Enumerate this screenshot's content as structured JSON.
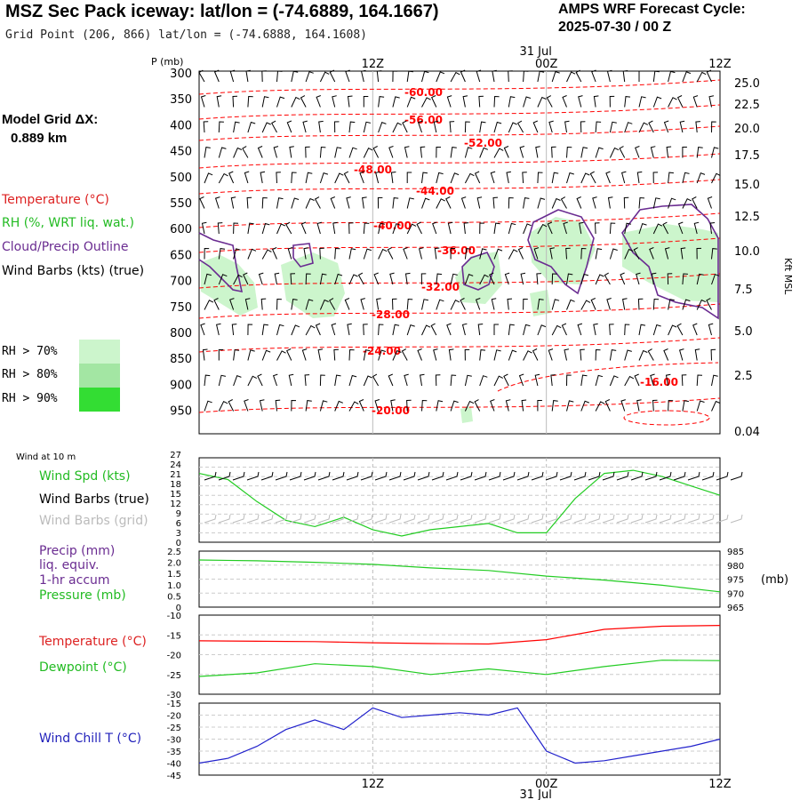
{
  "header": {
    "title": "MSZ Sec Pack iceway:  lat/lon = (-74.6889, 164.1667)",
    "subtitle": "Grid Point (206, 866) lat/lon = (-74.6888, 164.1608)",
    "cycle_label": "AMPS WRF Forecast Cycle:",
    "cycle_value": "2025-07-30 / 00  Z"
  },
  "model_grid": {
    "label": "Model Grid ΔX:",
    "value": "0.889 km"
  },
  "legend": {
    "temperature": "Temperature (°C)",
    "rh": "RH (%, WRT liq. wat.)",
    "cloud": "Cloud/Precip Outline",
    "wind": "Wind Barbs (kts) (true)",
    "rh70": "RH > 70%",
    "rh80": "RH > 80%",
    "rh90": "RH > 90%"
  },
  "colors": {
    "temperature": "#ff0000",
    "rh70": "#ccf5cc",
    "rh80": "#a3e6a3",
    "rh90": "#33dd33",
    "cloud": "#6a2c91",
    "wind_spd": "#22cc22",
    "pressure": "#22cc22",
    "dewpoint": "#22cc22",
    "windchill": "#2222cc",
    "grid_barbs": "#bbbbbb"
  },
  "panels": {
    "wind10_title": "Wind at 10 m",
    "wind_spd": "Wind Spd (kts)",
    "wind_barbs_true": "Wind Barbs (true)",
    "wind_barbs_grid": "Wind Barbs (grid)",
    "precip": "Precip (mm)",
    "precip_sub1": "liq. equiv.",
    "precip_sub2": "1-hr accum",
    "pressure": "Pressure (mb)",
    "pressure_unit": "(mb)",
    "temperature": "Temperature (°C)",
    "dewpoint": "Dewpoint (°C)",
    "windchill": "Wind Chill T (°C)"
  },
  "time_axis": {
    "top_labels": [
      "12Z",
      "00Z",
      "12Z"
    ],
    "date_label": "31 Jul"
  },
  "chart_data": [
    {
      "type": "line",
      "name": "upper-air cross section",
      "yaxis_left_label": "P (mb)",
      "pressure_ticks": [
        "300",
        "350",
        "400",
        "450",
        "500",
        "550",
        "600",
        "650",
        "700",
        "750",
        "800",
        "850",
        "900",
        "950"
      ],
      "height_ticks": [
        "25.0",
        "22.5",
        "20.0",
        "17.5",
        "15.0",
        "12.5",
        "10.0",
        "7.5",
        "5.0",
        "2.5",
        "0.04"
      ],
      "height_axis_label": "Kft MSL",
      "isotherm_labels": [
        "-60.00",
        "-56.00",
        "-52.00",
        "-48.00",
        "-44.00",
        "-40.00",
        "-36.00",
        "-32.00",
        "-28.00",
        "-24.00",
        "-20.00",
        "-16.00"
      ]
    },
    {
      "type": "line",
      "name": "10 m wind speed",
      "ylim": [
        0,
        27
      ],
      "yticks": [
        "27",
        "24",
        "21",
        "18",
        "15",
        "12",
        "9",
        "6",
        "3",
        "0"
      ],
      "x_hours": [
        0,
        2,
        4,
        6,
        8,
        10,
        12,
        14,
        16,
        18,
        20,
        22,
        24,
        26,
        28,
        30,
        32,
        34,
        36
      ],
      "values": [
        22,
        20,
        13,
        7,
        5,
        8,
        4,
        2,
        4,
        5,
        6,
        3,
        3,
        14,
        22,
        23,
        21,
        18,
        15
      ]
    },
    {
      "type": "line",
      "name": "surface pressure",
      "yticks_left": [
        "2.5",
        "2.0",
        "1.5",
        "1.0",
        "0.5",
        "0"
      ],
      "yticks_right": [
        "985",
        "980",
        "975",
        "970",
        "965"
      ],
      "ylim": [
        965,
        987
      ],
      "x_hours": [
        0,
        4,
        8,
        12,
        16,
        20,
        24,
        28,
        32,
        36
      ],
      "values": [
        983.5,
        983.2,
        982.6,
        981.8,
        980.4,
        979.4,
        977.2,
        975.6,
        973.6,
        971.0
      ]
    },
    {
      "type": "line",
      "name": "temperature and dewpoint",
      "ylim": [
        -30,
        -10
      ],
      "yticks": [
        "-10",
        "-15",
        "-20",
        "-25",
        "-30"
      ],
      "x_hours": [
        0,
        4,
        8,
        12,
        16,
        20,
        24,
        28,
        32,
        36
      ],
      "temperature": [
        -16.5,
        -16.6,
        -16.7,
        -17,
        -17.2,
        -17.3,
        -16.2,
        -13.6,
        -12.8,
        -12.6
      ],
      "dewpoint": [
        -25.5,
        -24.6,
        -22.3,
        -23.0,
        -25.0,
        -23.6,
        -25.0,
        -23.0,
        -21.4,
        -21.5
      ]
    },
    {
      "type": "line",
      "name": "wind chill",
      "ylim": [
        -45,
        -15
      ],
      "yticks": [
        "-15",
        "-20",
        "-25",
        "-30",
        "-35",
        "-40",
        "-45"
      ],
      "x_hours": [
        0,
        2,
        4,
        6,
        8,
        10,
        12,
        14,
        16,
        18,
        20,
        22,
        24,
        26,
        28,
        30,
        32,
        34,
        36
      ],
      "values": [
        -40,
        -38,
        -33,
        -26,
        -22,
        -26,
        -17,
        -21,
        -20,
        -19,
        -20,
        -17,
        -35,
        -40,
        -39,
        -37,
        -35,
        -33,
        -30
      ]
    }
  ]
}
